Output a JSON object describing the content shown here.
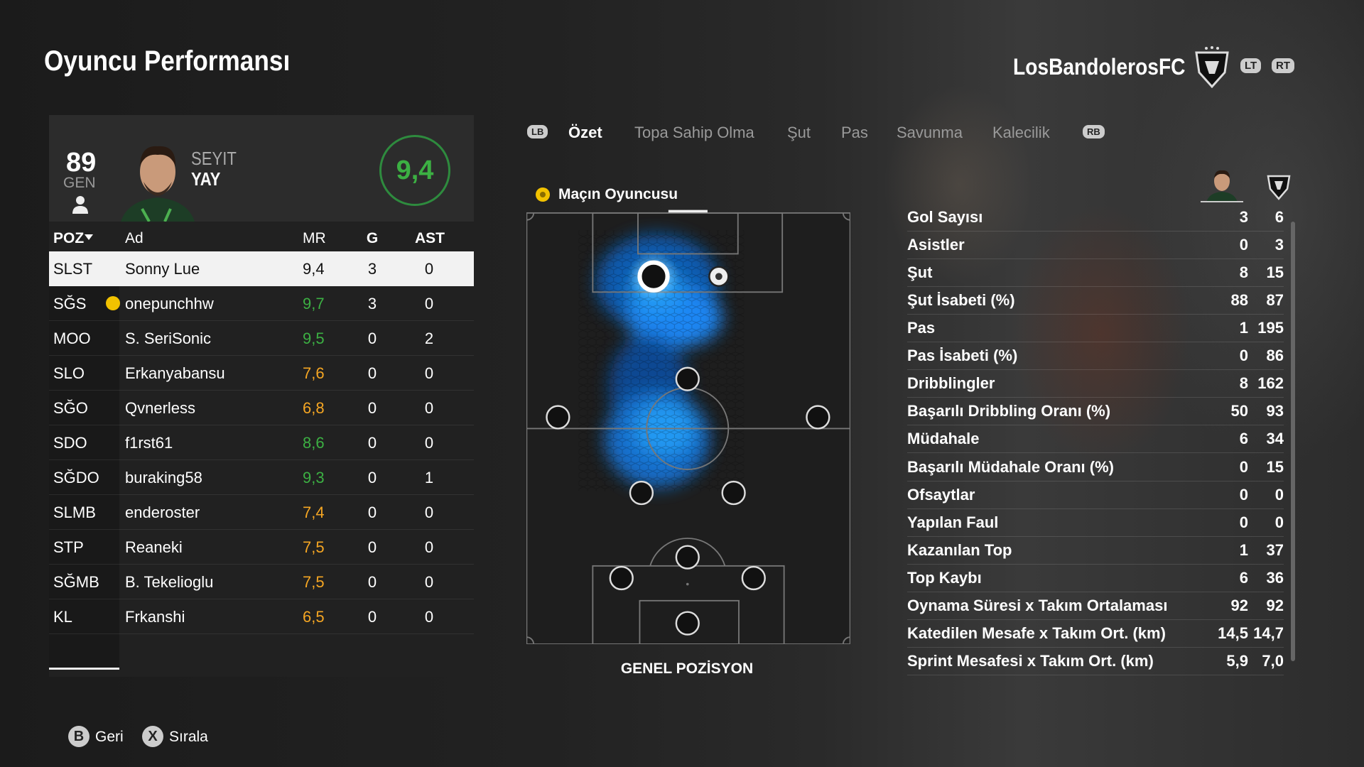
{
  "header": {
    "title": "Oyuncu Performansı",
    "team": "LosBandolerosFC",
    "buttons": [
      "LT",
      "RT"
    ]
  },
  "player_card": {
    "rating": 89,
    "rating_label": "GEN",
    "first_name": "SEYIT",
    "last_name": "YAY",
    "match_rating": "9,4"
  },
  "table": {
    "columns": [
      "POZ",
      "Ad",
      "MR",
      "G",
      "AST"
    ],
    "rows": [
      [
        "SLST",
        "Sonny Lue",
        "9,4",
        3,
        0
      ],
      [
        "SĞS",
        "onepunchhw",
        "9,7",
        3,
        0
      ],
      [
        "MOO",
        "S. SeriSonic",
        "9,5",
        0,
        2
      ],
      [
        "SLO",
        "Erkanyabansu",
        "7,6",
        0,
        0
      ],
      [
        "SĞO",
        "Qvnerless",
        "6,8",
        0,
        0
      ],
      [
        "SDO",
        "f1rst61",
        "8,6",
        0,
        0
      ],
      [
        "SĞDO",
        "buraking58",
        "9,3",
        0,
        1
      ],
      [
        "SLMB",
        "enderoster",
        "7,4",
        0,
        0
      ],
      [
        "STP",
        "Reaneki",
        "7,5",
        0,
        0
      ],
      [
        "SĞMB",
        "B. Tekelioglu",
        "7,5",
        0,
        0
      ],
      [
        "KL",
        "Frkanshi",
        "6,5",
        0,
        0
      ]
    ]
  },
  "tabs": {
    "left_button": "LB",
    "items": [
      "Özet",
      "Topa Sahip Olma",
      "Şut",
      "Pas",
      "Savunma",
      "Kalecilik"
    ],
    "right_button": "RB"
  },
  "heatmap": {
    "title": "Maçın Oyuncusu",
    "caption": "GENEL POZİSYON"
  },
  "stats": {
    "rows": [
      {
        "label": "Gol Sayısı",
        "player": 3,
        "team": 6
      },
      {
        "label": "Asistler",
        "player": 0,
        "team": 3
      },
      {
        "label": "Şut",
        "player": 8,
        "team": 15
      },
      {
        "label": "Şut İsabeti (%)",
        "player": 88,
        "team": 87
      },
      {
        "label": "Pas",
        "player": 1,
        "team": 195
      },
      {
        "label": "Pas İsabeti (%)",
        "player": 0,
        "team": 86
      },
      {
        "label": "Dribblingler",
        "player": 8,
        "team": 162
      },
      {
        "label": "Başarılı Dribbling Oranı (%)",
        "player": 50,
        "team": 93
      },
      {
        "label": "Müdahale",
        "player": 6,
        "team": 34
      },
      {
        "label": "Başarılı Müdahale Oranı (%)",
        "player": 0,
        "team": 15
      },
      {
        "label": "Ofsaytlar",
        "player": 0,
        "team": 0
      },
      {
        "label": "Yapılan Faul",
        "player": 0,
        "team": 0
      },
      {
        "label": "Kazanılan Top",
        "player": 1,
        "team": 37
      },
      {
        "label": "Top Kaybı",
        "player": 6,
        "team": 36
      },
      {
        "label": "Oynama Süresi x Takım Ortalaması",
        "player": 92,
        "team": 92
      },
      {
        "label": "Katedilen Mesafe x Takım Ort. (km)",
        "player": "14,5",
        "team": "14,7"
      },
      {
        "label": "Sprint Mesafesi x Takım Ort. (km)",
        "player": "5,9",
        "team": "7,0"
      }
    ]
  },
  "footer": [
    {
      "button": "B",
      "label": "Geri"
    },
    {
      "button": "X",
      "label": "Sırala"
    }
  ]
}
